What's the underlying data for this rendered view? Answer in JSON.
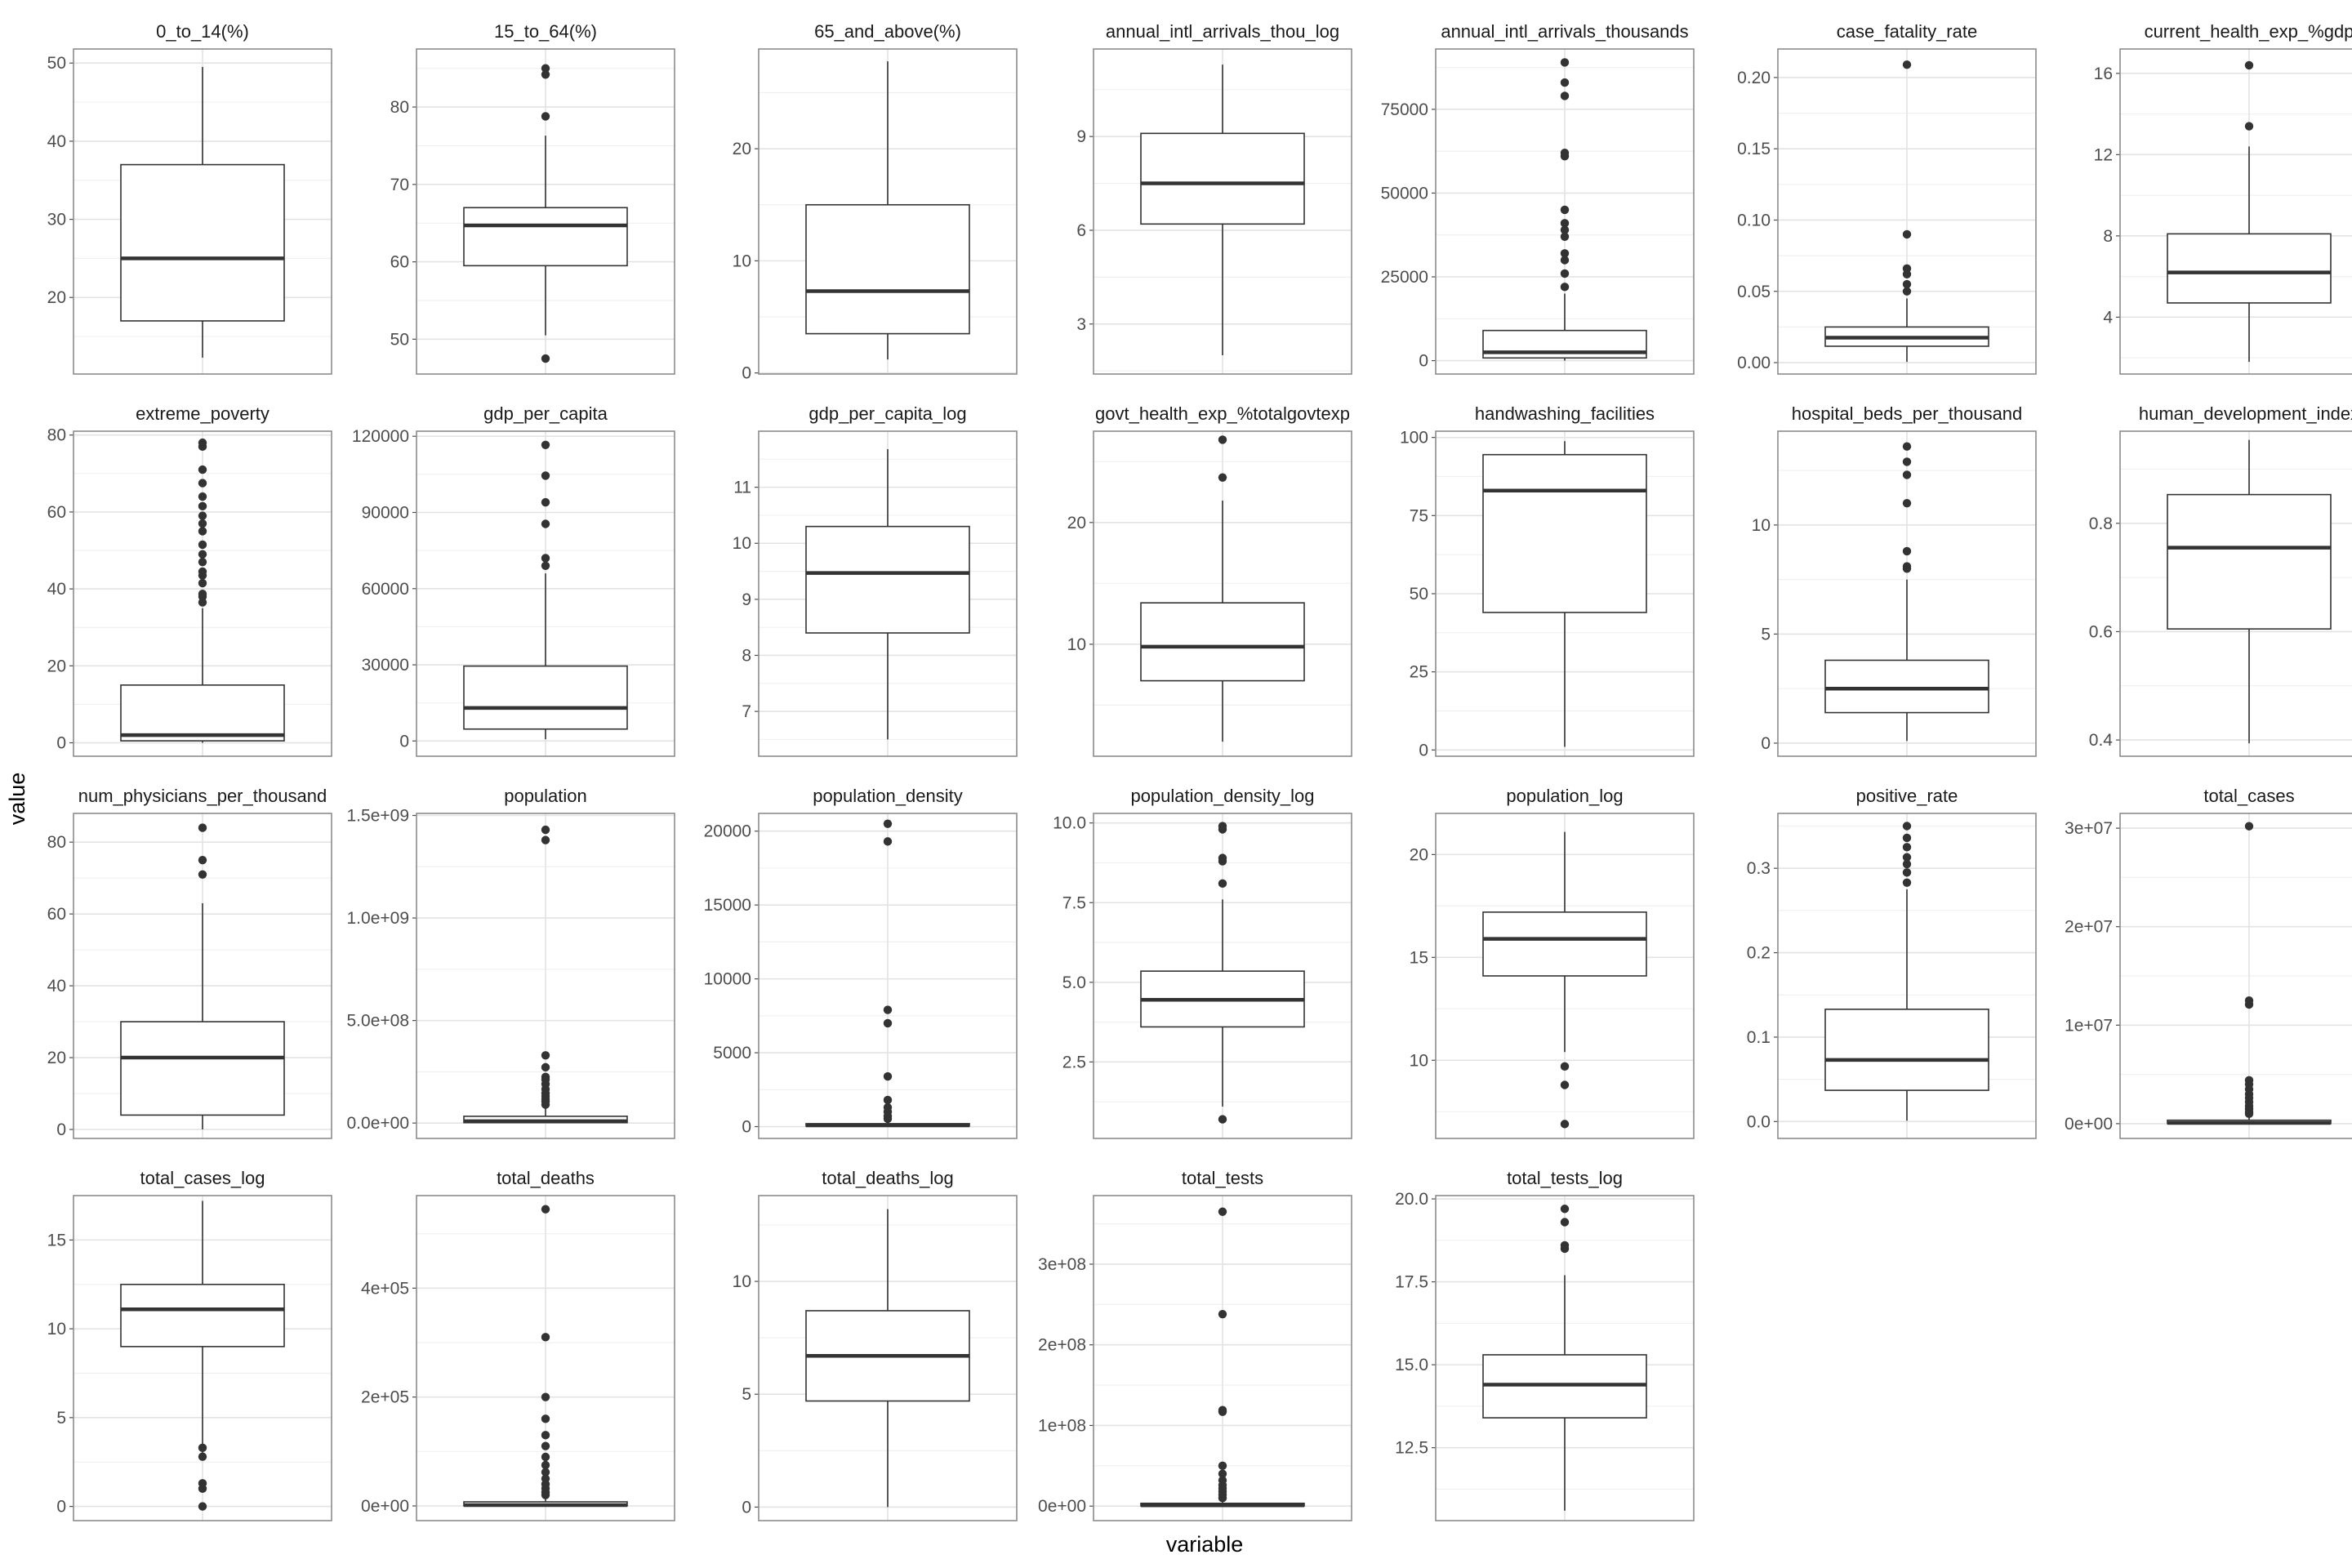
{
  "figure": {
    "xlabel": "variable",
    "ylabel": "value"
  },
  "chart_data": [
    {
      "type": "box",
      "title": "0_to_14(%)",
      "ylim": [
        10.2,
        51.8
      ],
      "ticks": [
        20,
        30,
        40,
        50
      ],
      "tick_labels": [
        "20",
        "30",
        "40",
        "50"
      ],
      "box": {
        "min": 12.3,
        "q1": 17,
        "median": 25,
        "q3": 37,
        "max": 49.5
      },
      "outliers": []
    },
    {
      "type": "box",
      "title": "15_to_64(%)",
      "ylim": [
        45.5,
        87.5
      ],
      "ticks": [
        50,
        60,
        70,
        80
      ],
      "tick_labels": [
        "50",
        "60",
        "70",
        "80"
      ],
      "box": {
        "min": 50.5,
        "q1": 59.5,
        "median": 64.7,
        "q3": 67,
        "max": 76.3
      },
      "outliers": [
        47.5,
        78.8,
        84.2,
        85
      ]
    },
    {
      "type": "box",
      "title": "65_and_above(%)",
      "ylim": [
        -0.1,
        28.9
      ],
      "ticks": [
        0,
        10,
        20
      ],
      "tick_labels": [
        "0",
        "10",
        "20"
      ],
      "box": {
        "min": 1.2,
        "q1": 3.5,
        "median": 7.3,
        "q3": 15,
        "max": 27.8
      },
      "outliers": []
    },
    {
      "type": "box",
      "title": "annual_intl_arrivals_thou_log",
      "ylim": [
        1.4,
        11.8
      ],
      "ticks": [
        3,
        6,
        9
      ],
      "tick_labels": [
        "3",
        "6",
        "9"
      ],
      "box": {
        "min": 2,
        "q1": 6.2,
        "median": 7.5,
        "q3": 9.1,
        "max": 11.3
      },
      "outliers": []
    },
    {
      "type": "box",
      "title": "annual_intl_arrivals_thousands",
      "ylim": [
        -4000,
        93000
      ],
      "ticks": [
        0,
        25000,
        50000,
        75000
      ],
      "tick_labels": [
        "0",
        "25000",
        "50000",
        "75000"
      ],
      "box": {
        "min": 0,
        "q1": 800,
        "median": 2500,
        "q3": 9000,
        "max": 20000
      },
      "outliers": [
        22000,
        26000,
        30000,
        32000,
        37000,
        39000,
        41000,
        45000,
        61000,
        62000,
        79000,
        83000,
        89000
      ]
    },
    {
      "type": "box",
      "title": "case_fatality_rate",
      "ylim": [
        -0.008,
        0.22
      ],
      "ticks": [
        0,
        0.05,
        0.1,
        0.15,
        0.2
      ],
      "tick_labels": [
        "0.00",
        "0.05",
        "0.10",
        "0.15",
        "0.20"
      ],
      "box": {
        "min": 0.0005,
        "q1": 0.0115,
        "median": 0.0175,
        "q3": 0.025,
        "max": 0.045
      },
      "outliers": [
        0.05,
        0.055,
        0.062,
        0.066,
        0.09,
        0.209
      ]
    },
    {
      "type": "box",
      "title": "current_health_exp_%gdp",
      "ylim": [
        1.2,
        17.2
      ],
      "ticks": [
        4,
        8,
        12,
        16
      ],
      "tick_labels": [
        "4",
        "8",
        "12",
        "16"
      ],
      "box": {
        "min": 1.8,
        "q1": 4.7,
        "median": 6.2,
        "q3": 8.1,
        "max": 12.4
      },
      "outliers": [
        13.4,
        16.4
      ]
    },
    {
      "type": "box",
      "title": "extreme_poverty",
      "ylim": [
        -3.5,
        81
      ],
      "ticks": [
        0,
        20,
        40,
        60,
        80
      ],
      "tick_labels": [
        "0",
        "20",
        "40",
        "60",
        "80"
      ],
      "box": {
        "min": 0,
        "q1": 0.5,
        "median": 2,
        "q3": 15,
        "max": 35
      },
      "outliers": [
        36.5,
        38,
        38.7,
        41.5,
        43.5,
        44.5,
        47,
        49,
        51.5,
        55,
        57,
        59,
        61.5,
        64,
        67.5,
        71,
        77,
        78
      ]
    },
    {
      "type": "box",
      "title": "gdp_per_capita",
      "ylim": [
        -6000,
        122000
      ],
      "ticks": [
        0,
        30000,
        60000,
        90000,
        120000
      ],
      "tick_labels": [
        "0",
        "30000",
        "60000",
        "90000",
        "120000"
      ],
      "box": {
        "min": 700,
        "q1": 4700,
        "median": 13000,
        "q3": 29500,
        "max": 66000
      },
      "outliers": [
        69000,
        72000,
        85500,
        94000,
        104500,
        116600
      ]
    },
    {
      "type": "box",
      "title": "gdp_per_capita_log",
      "ylim": [
        6.2,
        12
      ],
      "ticks": [
        7,
        8,
        9,
        10,
        11
      ],
      "tick_labels": [
        "7",
        "8",
        "9",
        "10",
        "11"
      ],
      "box": {
        "min": 6.5,
        "q1": 8.4,
        "median": 9.47,
        "q3": 10.3,
        "max": 11.68
      },
      "outliers": []
    },
    {
      "type": "box",
      "title": "govt_health_exp_%totalgovtexp",
      "ylim": [
        0.8,
        27.5
      ],
      "ticks": [
        10,
        20
      ],
      "tick_labels": [
        "10",
        "20"
      ],
      "box": {
        "min": 2,
        "q1": 7,
        "median": 9.8,
        "q3": 13.4,
        "max": 21.8
      },
      "outliers": [
        23.7,
        26.8
      ]
    },
    {
      "type": "box",
      "title": "handwashing_facilities",
      "ylim": [
        -2,
        102
      ],
      "ticks": [
        0,
        25,
        50,
        75,
        100
      ],
      "tick_labels": [
        "0",
        "25",
        "50",
        "75",
        "100"
      ],
      "box": {
        "min": 1,
        "q1": 44,
        "median": 83,
        "q3": 94.5,
        "max": 98.8
      },
      "outliers": []
    },
    {
      "type": "box",
      "title": "hospital_beds_per_thousand",
      "ylim": [
        -0.6,
        14.3
      ],
      "ticks": [
        0,
        5,
        10
      ],
      "tick_labels": [
        "0",
        "5",
        "10"
      ],
      "box": {
        "min": 0.1,
        "q1": 1.4,
        "median": 2.5,
        "q3": 3.8,
        "max": 7.5
      },
      "outliers": [
        8,
        8.1,
        8.8,
        11,
        12.3,
        12.9,
        13.6
      ]
    },
    {
      "type": "box",
      "title": "human_development_index",
      "ylim": [
        0.37,
        0.97
      ],
      "ticks": [
        0.4,
        0.6,
        0.8
      ],
      "tick_labels": [
        "0.4",
        "0.6",
        "0.8"
      ],
      "box": {
        "min": 0.394,
        "q1": 0.605,
        "median": 0.755,
        "q3": 0.853,
        "max": 0.954
      },
      "outliers": []
    },
    {
      "type": "box",
      "title": "num_physicians_per_thousand",
      "ylim": [
        -2.5,
        88
      ],
      "ticks": [
        0,
        20,
        40,
        60,
        80
      ],
      "tick_labels": [
        "0",
        "20",
        "40",
        "60",
        "80"
      ],
      "box": {
        "min": 0,
        "q1": 4,
        "median": 20,
        "q3": 30,
        "max": 63
      },
      "outliers": [
        71,
        75,
        84
      ]
    },
    {
      "type": "box",
      "title": "population",
      "ylim": [
        -75000000.0,
        1510000000.0
      ],
      "ticks": [
        0,
        500000000.0,
        1000000000.0,
        1500000000.0
      ],
      "tick_labels": [
        "0.0e+00",
        "5.0e+08",
        "1.0e+09",
        "1.5e+09"
      ],
      "box": {
        "min": 0,
        "q1": 2000000.0,
        "median": 9000000.0,
        "q3": 33000000.0,
        "max": 80000000.0
      },
      "outliers": [
        90000000.0,
        105000000.0,
        115000000.0,
        130000000.0,
        145000000.0,
        165000000.0,
        190000000.0,
        212000000.0,
        225000000.0,
        272000000.0,
        330000000.0,
        1380000000.0,
        1430000000.0
      ]
    },
    {
      "type": "box",
      "title": "population_density",
      "ylim": [
        -800,
        21200
      ],
      "ticks": [
        0,
        5000,
        10000,
        15000,
        20000
      ],
      "tick_labels": [
        "0",
        "5000",
        "10000",
        "15000",
        "20000"
      ],
      "box": {
        "min": 2,
        "q1": 35,
        "median": 85,
        "q3": 200,
        "max": 420
      },
      "outliers": [
        530,
        700,
        1000,
        1300,
        1800,
        3400,
        7000,
        7900,
        19300,
        20500
      ]
    },
    {
      "type": "box",
      "title": "population_density_log",
      "ylim": [
        0.1,
        10.3
      ],
      "ticks": [
        2.5,
        5,
        7.5,
        10
      ],
      "tick_labels": [
        "2.5",
        "5.0",
        "7.5",
        "10.0"
      ],
      "box": {
        "min": 1.1,
        "q1": 3.6,
        "median": 4.45,
        "q3": 5.35,
        "max": 7.6
      },
      "outliers": [
        0.7,
        8.1,
        8.8,
        8.9,
        9.8,
        9.9
      ]
    },
    {
      "type": "box",
      "title": "population_log",
      "ylim": [
        6.2,
        22
      ],
      "ticks": [
        10,
        15,
        20
      ],
      "tick_labels": [
        "10",
        "15",
        "20"
      ],
      "box": {
        "min": 10.4,
        "q1": 14.1,
        "median": 15.9,
        "q3": 17.2,
        "max": 21.1
      },
      "outliers": [
        6.9,
        8.8,
        9.7
      ]
    },
    {
      "type": "box",
      "title": "positive_rate",
      "ylim": [
        -0.02,
        0.365
      ],
      "ticks": [
        0,
        0.1,
        0.2,
        0.3
      ],
      "tick_labels": [
        "0.0",
        "0.1",
        "0.2",
        "0.3"
      ],
      "box": {
        "min": 0.001,
        "q1": 0.037,
        "median": 0.073,
        "q3": 0.133,
        "max": 0.275
      },
      "outliers": [
        0.283,
        0.295,
        0.305,
        0.313,
        0.325,
        0.336,
        0.35
      ]
    },
    {
      "type": "box",
      "title": "total_cases",
      "ylim": [
        -1500000.0,
        31500000.0
      ],
      "ticks": [
        0,
        10000000.0,
        20000000.0,
        30000000.0
      ],
      "tick_labels": [
        "0e+00",
        "1e+07",
        "2e+07",
        "3e+07"
      ],
      "box": {
        "min": 0,
        "q1": 10000.0,
        "median": 80000.0,
        "q3": 350000.0,
        "max": 800000.0
      },
      "outliers": [
        1000000.0,
        1200000.0,
        1500000.0,
        1800000.0,
        2200000.0,
        2600000.0,
        3000000.0,
        3500000.0,
        4000000.0,
        4400000.0,
        12100000.0,
        12500000.0,
        30200000.0
      ]
    },
    {
      "type": "box",
      "title": "total_cases_log",
      "ylim": [
        -0.8,
        17.5
      ],
      "ticks": [
        0,
        5,
        10,
        15
      ],
      "tick_labels": [
        "0",
        "5",
        "10",
        "15"
      ],
      "box": {
        "min": 2.6,
        "q1": 9,
        "median": 11.1,
        "q3": 12.5,
        "max": 17.2
      },
      "outliers": [
        0,
        1,
        1.3,
        2.8,
        3.3
      ]
    },
    {
      "type": "box",
      "title": "total_deaths",
      "ylim": [
        -27000,
        570000
      ],
      "ticks": [
        0,
        200000,
        400000
      ],
      "tick_labels": [
        "0e+00",
        "2e+05",
        "4e+05"
      ],
      "box": {
        "min": 0,
        "q1": 100,
        "median": 1500,
        "q3": 7500,
        "max": 18000
      },
      "outliers": [
        20000,
        25000,
        32000,
        40000,
        50000,
        62000,
        75000,
        90000,
        110000,
        130000,
        160000,
        200000,
        310000,
        545000
      ]
    },
    {
      "type": "box",
      "title": "total_deaths_log",
      "ylim": [
        -0.6,
        13.8
      ],
      "ticks": [
        0,
        5,
        10
      ],
      "tick_labels": [
        "0",
        "5",
        "10"
      ],
      "box": {
        "min": 0,
        "q1": 4.7,
        "median": 6.7,
        "q3": 8.7,
        "max": 13.2
      },
      "outliers": []
    },
    {
      "type": "box",
      "title": "total_tests",
      "ylim": [
        -18000000.0,
        385000000.0
      ],
      "ticks": [
        0,
        100000000.0,
        200000000.0,
        300000000.0
      ],
      "tick_labels": [
        "0e+00",
        "1e+08",
        "2e+08",
        "3e+08"
      ],
      "box": {
        "min": 0,
        "q1": 200000.0,
        "median": 1000000.0,
        "q3": 3500000.0,
        "max": 8000000.0
      },
      "outliers": [
        10000000.0,
        14000000.0,
        18000000.0,
        22000000.0,
        26000000.0,
        32000000.0,
        40000000.0,
        50000000.0,
        117000000.0,
        119000000.0,
        238000000.0,
        365000000.0
      ]
    },
    {
      "type": "box",
      "title": "total_tests_log",
      "ylim": [
        10.3,
        20.1
      ],
      "ticks": [
        12.5,
        15,
        17.5,
        20
      ],
      "tick_labels": [
        "12.5",
        "15.0",
        "17.5",
        "20.0"
      ],
      "box": {
        "min": 10.6,
        "q1": 13.4,
        "median": 14.4,
        "q3": 15.3,
        "max": 17.7
      },
      "outliers": [
        18.5,
        18.6,
        19.3,
        19.7
      ]
    }
  ]
}
